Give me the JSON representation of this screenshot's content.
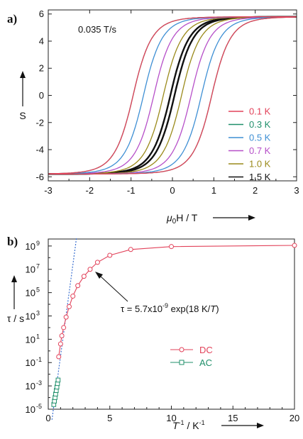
{
  "chart_data": [
    {
      "panel": "a)",
      "type": "line",
      "annotation": "0.035 T/s",
      "xlabel_parts": [
        "μ",
        "0",
        "H / T"
      ],
      "ylabel": "S",
      "xlim": [
        -3,
        3
      ],
      "ylim": [
        -6.3,
        6.3
      ],
      "x_ticks": [
        -3,
        -2,
        -1,
        0,
        1,
        2,
        3
      ],
      "y_ticks": [
        -6,
        -4,
        -2,
        0,
        2,
        4,
        6
      ],
      "legend_position": "right",
      "grid": false,
      "sweeps": [
        "up",
        "down"
      ],
      "series": [
        {
          "name": "0.1 K",
          "color": "#e2425a",
          "coercive_field": 0.95,
          "saturation": 5.8
        },
        {
          "name": "0.3 K",
          "color": "#1f8f6a",
          "coercive_field": 0.95,
          "saturation": 5.8
        },
        {
          "name": "0.5 K",
          "color": "#3e8fd4",
          "coercive_field": 0.7,
          "saturation": 5.8
        },
        {
          "name": "0.7 K",
          "color": "#b64fc8",
          "coercive_field": 0.45,
          "saturation": 5.8
        },
        {
          "name": "1.0 K",
          "color": "#9a8a1a",
          "coercive_field": 0.22,
          "saturation": 5.8
        },
        {
          "name": "1.5 K",
          "color": "#111111",
          "coercive_field": 0.05,
          "saturation": 5.8
        }
      ]
    },
    {
      "panel": "b)",
      "type": "scatter",
      "xlabel_parts": [
        "T",
        "-1",
        " / K",
        "-1"
      ],
      "ylabel": "τ / s",
      "xlim": [
        0,
        20
      ],
      "ylim_log10": [
        -5,
        9.6
      ],
      "x_ticks": [
        0,
        5,
        10,
        15,
        20
      ],
      "y_ticks_log10": [
        -5,
        -3,
        -1,
        1,
        3,
        5,
        7,
        9
      ],
      "y_tick_labels": [
        {
          "base": "10",
          "exp": "-5"
        },
        {
          "base": "10",
          "exp": "-3"
        },
        {
          "base": "10",
          "exp": "-1"
        },
        {
          "base": "10",
          "exp": "1"
        },
        {
          "base": "10",
          "exp": "3"
        },
        {
          "base": "10",
          "exp": "5"
        },
        {
          "base": "10",
          "exp": "7"
        },
        {
          "base": "10",
          "exp": "9"
        }
      ],
      "legend_position": "center",
      "annotation_parts": [
        "τ = 5.7x10",
        "-9",
        " exp(18 K/",
        "T",
        ")"
      ],
      "fit_line": {
        "tau0": 5.7e-09,
        "Ueff_K": 18,
        "style": "dotted",
        "color": "#3a6fd0"
      },
      "series": [
        {
          "name": "DC",
          "color": "#e2425a",
          "marker": "circle",
          "points": [
            {
              "x": 0.85,
              "log10_tau": -0.5
            },
            {
              "x": 1.0,
              "log10_tau": 0.6
            },
            {
              "x": 1.1,
              "log10_tau": 1.3
            },
            {
              "x": 1.25,
              "log10_tau": 2.0
            },
            {
              "x": 1.45,
              "log10_tau": 2.9
            },
            {
              "x": 1.7,
              "log10_tau": 3.8
            },
            {
              "x": 2.0,
              "log10_tau": 4.7
            },
            {
              "x": 2.4,
              "log10_tau": 5.6
            },
            {
              "x": 2.9,
              "log10_tau": 6.4
            },
            {
              "x": 3.4,
              "log10_tau": 7.0
            },
            {
              "x": 4.0,
              "log10_tau": 7.6
            },
            {
              "x": 5.0,
              "log10_tau": 8.2
            },
            {
              "x": 6.7,
              "log10_tau": 8.7
            },
            {
              "x": 10.0,
              "log10_tau": 8.95
            },
            {
              "x": 20.0,
              "log10_tau": 9.05
            }
          ]
        },
        {
          "name": "AC",
          "color": "#1f8f6a",
          "marker": "square",
          "points": [
            {
              "x": 0.45,
              "log10_tau": -4.6
            },
            {
              "x": 0.5,
              "log10_tau": -4.3
            },
            {
              "x": 0.55,
              "log10_tau": -4.0
            },
            {
              "x": 0.6,
              "log10_tau": -3.7
            },
            {
              "x": 0.65,
              "log10_tau": -3.4
            },
            {
              "x": 0.7,
              "log10_tau": -3.1
            },
            {
              "x": 0.75,
              "log10_tau": -2.8
            },
            {
              "x": 0.8,
              "log10_tau": -2.5
            }
          ]
        }
      ]
    }
  ]
}
